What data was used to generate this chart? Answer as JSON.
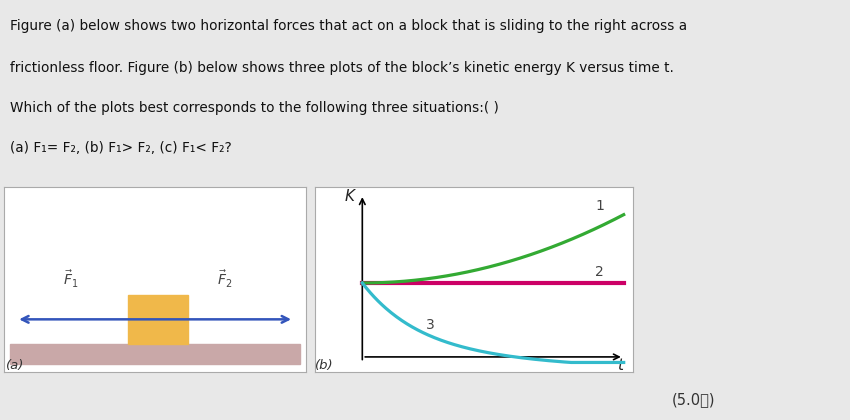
{
  "bg_color": "#e8e8e8",
  "text_lines": [
    "Figure (a) below shows two horizontal forces that act on a block that is sliding to the right across a",
    "frictionless floor. Figure (b) below shows three plots of the block’s kinetic energy K versus time t.",
    "Which of the plots best corresponds to the following three situations:( )",
    "(a) F₁= F₂, (b) F₁> F₂, (c) F₁< F₂?"
  ],
  "floor_color": "#c9a8a8",
  "block_color": "#f0b84a",
  "arrow_color": "#3355bb",
  "curve1_color": "#33aa33",
  "curve2_color": "#cc0066",
  "curve3_color": "#33bbcc",
  "label_color": "#444444",
  "score_text": "(5.0分)",
  "panel_border": "#aaaaaa"
}
